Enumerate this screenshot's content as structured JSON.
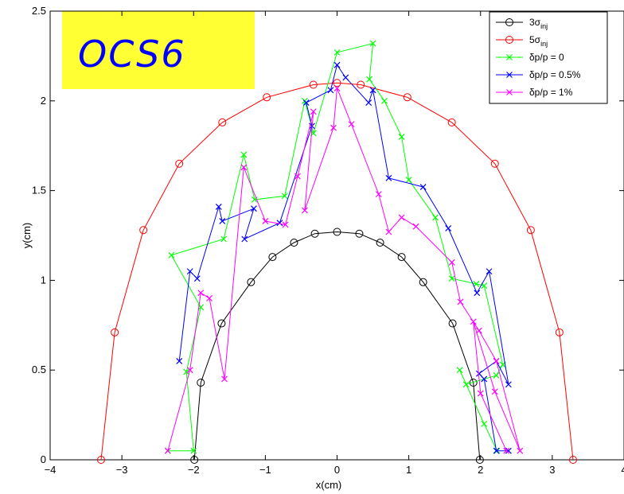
{
  "chart_data": {
    "type": "line",
    "title": "",
    "badge": "OCS6",
    "xlabel": "x(cm)",
    "ylabel": "y(cm)",
    "xlim": [
      -4,
      4
    ],
    "ylim": [
      0,
      2.5
    ],
    "xticks": [
      -4,
      -3,
      -2,
      -1,
      0,
      1,
      2,
      3,
      4
    ],
    "yticks": [
      0,
      0.5,
      1,
      1.5,
      2,
      2.5
    ],
    "xtick_labels": [
      "−4",
      "−3",
      "−2",
      "−1",
      "0",
      "1",
      "2",
      "3",
      "4"
    ],
    "ytick_labels": [
      "0",
      "0.5",
      "1",
      "1.5",
      "2",
      "2.5"
    ],
    "grid": false,
    "legend_position": "top-right",
    "series": [
      {
        "name": "3σinj",
        "legend_main": "3σ",
        "legend_sub": "inj",
        "color": "#000000",
        "marker": "circle",
        "x": [
          -1.99,
          -1.9,
          -1.61,
          -1.2,
          -0.9,
          -0.6,
          -0.31,
          0,
          0.31,
          0.6,
          0.9,
          1.2,
          1.61,
          1.9,
          1.99
        ],
        "y": [
          0,
          0.43,
          0.76,
          0.99,
          1.13,
          1.21,
          1.26,
          1.27,
          1.26,
          1.21,
          1.13,
          0.99,
          0.76,
          0.43,
          0
        ]
      },
      {
        "name": "5σinj",
        "legend_main": "5σ",
        "legend_sub": "inj",
        "color": "#ff0000",
        "marker": "circle",
        "x": [
          -3.29,
          -3.1,
          -2.7,
          -2.2,
          -1.6,
          -0.98,
          -0.33,
          0,
          0.33,
          0.98,
          1.6,
          2.2,
          2.7,
          3.1,
          3.29
        ],
        "y": [
          0,
          0.71,
          1.28,
          1.65,
          1.88,
          2.02,
          2.09,
          2.1,
          2.09,
          2.02,
          1.88,
          1.65,
          1.28,
          0.71,
          0
        ]
      },
      {
        "name": "δp/p = 0",
        "legend_main": "δp/p = 0",
        "legend_sub": "",
        "color": "#00ff00",
        "marker": "x",
        "x": [
          -2.36,
          -2.0,
          -2.1,
          -1.9,
          -2.31,
          -1.58,
          -1.3,
          -1.15,
          -0.73,
          -0.45,
          -0.33,
          0,
          0.5,
          0.45,
          0.66,
          0.9,
          1.0,
          1.37,
          1.6,
          1.94,
          2.05,
          2.31,
          2.22,
          1.8,
          1.71,
          2.05,
          2.23
        ],
        "y": [
          0.05,
          0.05,
          0.49,
          0.85,
          1.14,
          1.23,
          1.7,
          1.45,
          1.47,
          2.0,
          1.82,
          2.27,
          2.32,
          2.12,
          2.0,
          1.8,
          1.56,
          1.35,
          1.01,
          0.98,
          0.97,
          0.53,
          0.47,
          0.42,
          0.5,
          0.2,
          0.05
        ]
      },
      {
        "name": "δp/p = 0.5%",
        "legend_main": "δp/p = 0.5%",
        "legend_sub": "",
        "color": "#0000ff",
        "marker": "x",
        "x": [
          -2.2,
          -2.05,
          -1.95,
          -1.65,
          -1.6,
          -1.16,
          -1.29,
          -0.8,
          -0.35,
          -0.43,
          -0.09,
          0,
          0.12,
          0.44,
          0.5,
          0.72,
          1.2,
          1.55,
          1.95,
          2.12,
          2.39,
          2.22,
          1.98,
          2.05,
          2.22,
          2.39
        ],
        "y": [
          0.55,
          1.05,
          1.01,
          1.41,
          1.33,
          1.4,
          1.23,
          1.32,
          1.86,
          1.99,
          2.06,
          2.2,
          2.13,
          1.99,
          2.06,
          1.57,
          1.52,
          1.29,
          0.93,
          1.05,
          0.42,
          0.55,
          0.48,
          0.45,
          0.05,
          0.05
        ]
      },
      {
        "name": "δp/p = 1%",
        "legend_main": "δp/p = 1%",
        "legend_sub": "",
        "color": "#ff00ff",
        "marker": "x",
        "x": [
          -2.36,
          -2.05,
          -1.9,
          -1.78,
          -1.57,
          -1.3,
          -1.0,
          -0.72,
          -0.55,
          -0.33,
          -0.45,
          -0.05,
          0,
          0.2,
          0.58,
          0.72,
          0.9,
          1.1,
          1.6,
          1.72,
          1.98,
          2.22,
          2.55,
          2.2,
          1.9,
          2.0,
          2.36
        ],
        "y": [
          0.05,
          0.5,
          0.93,
          0.9,
          0.45,
          1.63,
          1.33,
          1.31,
          1.58,
          1.94,
          1.39,
          1.85,
          2.07,
          1.87,
          1.48,
          1.27,
          1.35,
          1.3,
          1.1,
          0.88,
          0.72,
          0.55,
          0.05,
          0.38,
          0.77,
          0.37,
          0.05
        ]
      }
    ]
  }
}
